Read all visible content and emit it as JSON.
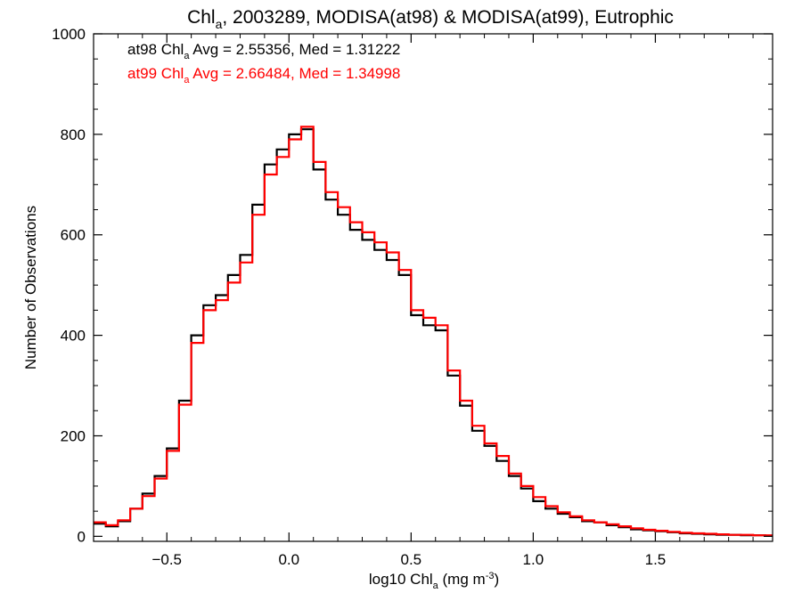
{
  "chart_data": {
    "type": "line",
    "title": {
      "prefix": "Chl",
      "sub": "a",
      "suffix": ", 2003289, MODISA(at98) & MODISA(at99), Eutrophic"
    },
    "xlabel": {
      "prefix": "log10 Chl",
      "sub": "a",
      "suffix": " (mg m",
      "sup": "-3",
      "end": ")"
    },
    "ylabel": "Number of Observations",
    "xlim": [
      -0.8,
      1.98
    ],
    "ylim": [
      -10,
      1000
    ],
    "x_ticks": [
      {
        "value": -0.5,
        "label": "−0.5"
      },
      {
        "value": 0.0,
        "label": "0.0"
      },
      {
        "value": 0.5,
        "label": "0.5"
      },
      {
        "value": 1.0,
        "label": "1.0"
      },
      {
        "value": 1.5,
        "label": "1.5"
      }
    ],
    "y_ticks": [
      {
        "value": 0,
        "label": "0"
      },
      {
        "value": 200,
        "label": "200"
      },
      {
        "value": 400,
        "label": "400"
      },
      {
        "value": 600,
        "label": "600"
      },
      {
        "value": 800,
        "label": "800"
      },
      {
        "value": 1000,
        "label": "1000"
      }
    ],
    "grid": false,
    "legend_placement": "top-left",
    "annotations": [
      {
        "prefix": "at98 Chl",
        "sub": "a",
        "suffix": " Avg = 2.55356, Med = 1.31222",
        "color": "#000000"
      },
      {
        "prefix": "at99 Chl",
        "sub": "a",
        "suffix": " Avg = 2.66484, Med = 1.34998",
        "color": "#ff0000"
      }
    ],
    "series": [
      {
        "color": "#000000",
        "style": "step",
        "x": [
          -0.8,
          -0.75,
          -0.7,
          -0.65,
          -0.6,
          -0.55,
          -0.5,
          -0.45,
          -0.4,
          -0.35,
          -0.3,
          -0.25,
          -0.2,
          -0.15,
          -0.1,
          -0.05,
          0.0,
          0.05,
          0.1,
          0.15,
          0.2,
          0.25,
          0.3,
          0.35,
          0.4,
          0.45,
          0.5,
          0.55,
          0.6,
          0.65,
          0.7,
          0.75,
          0.8,
          0.85,
          0.9,
          0.95,
          1.0,
          1.05,
          1.1,
          1.15,
          1.2,
          1.25,
          1.3,
          1.35,
          1.4,
          1.45,
          1.5,
          1.55,
          1.6,
          1.65,
          1.7,
          1.75,
          1.8,
          1.85,
          1.9,
          1.95
        ],
        "y": [
          25,
          20,
          30,
          55,
          85,
          120,
          175,
          270,
          400,
          460,
          480,
          520,
          560,
          660,
          740,
          770,
          800,
          810,
          730,
          670,
          640,
          610,
          590,
          570,
          550,
          520,
          440,
          420,
          410,
          320,
          260,
          210,
          180,
          150,
          120,
          95,
          70,
          55,
          45,
          38,
          30,
          28,
          22,
          18,
          14,
          12,
          10,
          8,
          6,
          5,
          4,
          3,
          3,
          2,
          2,
          1
        ]
      },
      {
        "color": "#ff0000",
        "style": "step",
        "x": [
          -0.8,
          -0.75,
          -0.7,
          -0.65,
          -0.6,
          -0.55,
          -0.5,
          -0.45,
          -0.4,
          -0.35,
          -0.3,
          -0.25,
          -0.2,
          -0.15,
          -0.1,
          -0.05,
          0.0,
          0.05,
          0.1,
          0.15,
          0.2,
          0.25,
          0.3,
          0.35,
          0.4,
          0.45,
          0.5,
          0.55,
          0.6,
          0.65,
          0.7,
          0.75,
          0.8,
          0.85,
          0.9,
          0.95,
          1.0,
          1.05,
          1.1,
          1.15,
          1.2,
          1.25,
          1.3,
          1.35,
          1.4,
          1.45,
          1.5,
          1.55,
          1.6,
          1.65,
          1.7,
          1.75,
          1.8,
          1.85,
          1.9,
          1.95
        ],
        "y": [
          28,
          22,
          32,
          55,
          80,
          115,
          170,
          262,
          385,
          450,
          470,
          505,
          545,
          640,
          720,
          755,
          790,
          815,
          745,
          685,
          655,
          625,
          605,
          585,
          565,
          530,
          450,
          435,
          420,
          330,
          270,
          220,
          185,
          160,
          125,
          100,
          78,
          60,
          48,
          40,
          32,
          28,
          24,
          20,
          16,
          13,
          11,
          9,
          7,
          6,
          5,
          4,
          3,
          3,
          2,
          2
        ]
      }
    ]
  }
}
